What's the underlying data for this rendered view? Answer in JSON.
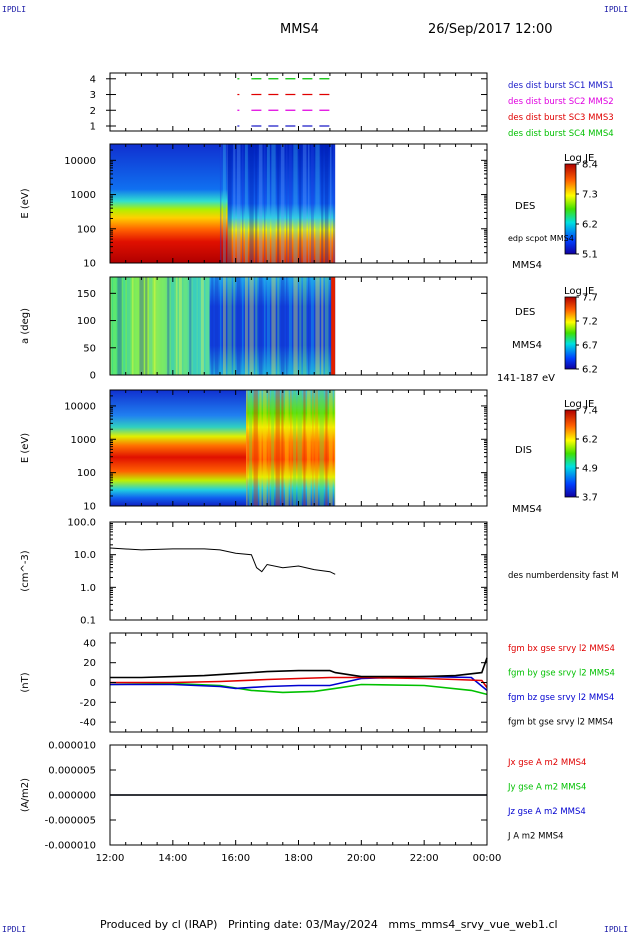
{
  "header": {
    "corner_label": "IPDLI",
    "mission": "MMS4",
    "date": "26/Sep/2017 12:00"
  },
  "footer": {
    "text": "Produced by cl (IRAP)   Printing date: 03/May/2024   mms_mms4_srvy_vue_web1.cl"
  },
  "colors": {
    "red": "#e00000",
    "magenta": "#e000e0",
    "green": "#00c000",
    "blue": "#0000d0",
    "black": "#000000"
  },
  "chart_data": [
    {
      "type": "line",
      "panel": "burst",
      "yticks": [
        "4",
        "3",
        "2",
        "1"
      ],
      "series": [
        {
          "name": "des dist burst SC1 MMS1",
          "level": 1,
          "color": "#1a1ac8",
          "segments": [
            [
              "16:30",
              "19:00"
            ]
          ]
        },
        {
          "name": "des dist burst SC2 MMS2",
          "level": 2,
          "color": "#e000e0",
          "segments": [
            [
              "16:30",
              "19:00"
            ]
          ]
        },
        {
          "name": "des dist burst SC3 MMS3",
          "level": 3,
          "color": "#e00000",
          "segments": [
            [
              "16:30",
              "19:00"
            ]
          ]
        },
        {
          "name": "des dist burst SC4 MMS4",
          "level": 4,
          "color": "#00c000",
          "segments": [
            [
              "16:30",
              "19:00"
            ]
          ]
        }
      ]
    },
    {
      "type": "heatmap",
      "panel": "des-energy",
      "ylabel": "E (eV)",
      "yscale": "log",
      "ylim": [
        10,
        30000
      ],
      "yticks": [
        "10000",
        "1000",
        "100",
        "10"
      ],
      "right_labels": [
        "DES",
        "edp scpot MMS4",
        "MMS4"
      ],
      "colorbar": {
        "title": "Log JE",
        "ticks": [
          "8.4",
          "7.3",
          "6.2",
          "5.1"
        ]
      },
      "data_end": "19:10"
    },
    {
      "type": "heatmap",
      "panel": "des-pitch",
      "ylabel": "a (deg)",
      "ylim": [
        0,
        180
      ],
      "yticks": [
        "150",
        "100",
        "50",
        "0"
      ],
      "right_labels": [
        "DES",
        "MMS4",
        "141-187 eV"
      ],
      "colorbar": {
        "title": "Log JE",
        "ticks": [
          "7.7",
          "7.2",
          "6.7",
          "6.2"
        ]
      },
      "data_end": "19:10"
    },
    {
      "type": "heatmap",
      "panel": "dis-energy",
      "ylabel": "E (eV)",
      "yscale": "log",
      "ylim": [
        10,
        30000
      ],
      "yticks": [
        "10000",
        "1000",
        "100",
        "10"
      ],
      "right_labels": [
        "DIS",
        "MMS4"
      ],
      "colorbar": {
        "title": "Log JE",
        "ticks": [
          "7.4",
          "6.2",
          "4.9",
          "3.7"
        ]
      },
      "data_end": "19:10"
    },
    {
      "type": "line",
      "panel": "density",
      "ylabel": "(cm^-3)",
      "yscale": "log",
      "ylim": [
        0.1,
        100
      ],
      "yticks": [
        "100.0",
        "10.0",
        "1.0",
        "0.1"
      ],
      "series": [
        {
          "name": "des numberdensity fast M",
          "color": "#000000",
          "x": [
            "12:00",
            "13:00",
            "14:00",
            "15:00",
            "15:30",
            "16:00",
            "16:30",
            "16:40",
            "16:50",
            "17:00",
            "17:30",
            "18:00",
            "18:30",
            "19:00",
            "19:10"
          ],
          "y": [
            16,
            14,
            15,
            15,
            14,
            11,
            10,
            4,
            3,
            5,
            4,
            4.5,
            3.5,
            3,
            2.5
          ]
        }
      ]
    },
    {
      "type": "line",
      "panel": "fgm",
      "ylabel": "(nT)",
      "ylim": [
        -50,
        50
      ],
      "yticks": [
        "40",
        "20",
        "0",
        "-20",
        "-40"
      ],
      "series": [
        {
          "name": "fgm bx gse srvy l2 MMS4",
          "color": "#e00000",
          "x": [
            "12:00",
            "14:00",
            "15:30",
            "17:00",
            "19:00",
            "20:00",
            "22:00",
            "23:00",
            "23:50",
            "00:00"
          ],
          "y": [
            0,
            0,
            1,
            3,
            5,
            5,
            4,
            3,
            2,
            -5
          ]
        },
        {
          "name": "fgm by gse srvy l2 MMS4",
          "color": "#00c000",
          "x": [
            "12:00",
            "14:00",
            "15:30",
            "16:30",
            "17:30",
            "18:30",
            "19:10",
            "20:00",
            "22:00",
            "23:30",
            "00:00"
          ],
          "y": [
            -2,
            -1,
            -3,
            -8,
            -10,
            -9,
            -6,
            -2,
            -3,
            -8,
            -12
          ]
        },
        {
          "name": "fgm bz gse srvy l2 MMS4",
          "color": "#0000d0",
          "x": [
            "12:00",
            "14:00",
            "15:30",
            "16:00",
            "17:00",
            "18:00",
            "19:00",
            "20:00",
            "22:00",
            "23:30",
            "00:00"
          ],
          "y": [
            -2,
            -2,
            -4,
            -6,
            -4,
            -3,
            -3,
            4,
            6,
            5,
            -8
          ]
        },
        {
          "name": "fgm bt gse srvy l2 MMS4",
          "color": "#000000",
          "x": [
            "12:00",
            "13:00",
            "14:00",
            "15:00",
            "15:30",
            "16:00",
            "17:00",
            "18:00",
            "19:00",
            "19:10",
            "20:00",
            "21:00",
            "22:00",
            "23:00",
            "23:50",
            "00:00"
          ],
          "y": [
            5,
            5,
            6,
            7,
            8,
            9,
            11,
            12,
            12,
            10,
            6,
            6,
            6,
            7,
            10,
            25
          ]
        }
      ]
    },
    {
      "type": "line",
      "panel": "current",
      "ylabel": "(A/m2)",
      "ylim": [
        -1e-05,
        1e-05
      ],
      "yticks": [
        "0.000010",
        "0.000005",
        "0.000000",
        "-0.000005",
        "-0.000010"
      ],
      "xticks": [
        "12:00",
        "14:00",
        "16:00",
        "18:00",
        "20:00",
        "22:00",
        "00:00"
      ],
      "series": [
        {
          "name": "Jx gse A m2 MMS4",
          "color": "#e00000",
          "x": [
            "12:00",
            "00:00"
          ],
          "y": [
            0,
            0
          ]
        },
        {
          "name": "Jy gse A m2 MMS4",
          "color": "#00c000",
          "x": [
            "12:00",
            "00:00"
          ],
          "y": [
            0,
            0
          ]
        },
        {
          "name": "Jz gse A m2 MMS4",
          "color": "#0000d0",
          "x": [
            "12:00",
            "00:00"
          ],
          "y": [
            0,
            0
          ]
        },
        {
          "name": "J A m2 MMS4",
          "color": "#000000",
          "x": [
            "12:00",
            "00:00"
          ],
          "y": [
            0,
            0
          ]
        }
      ]
    }
  ]
}
